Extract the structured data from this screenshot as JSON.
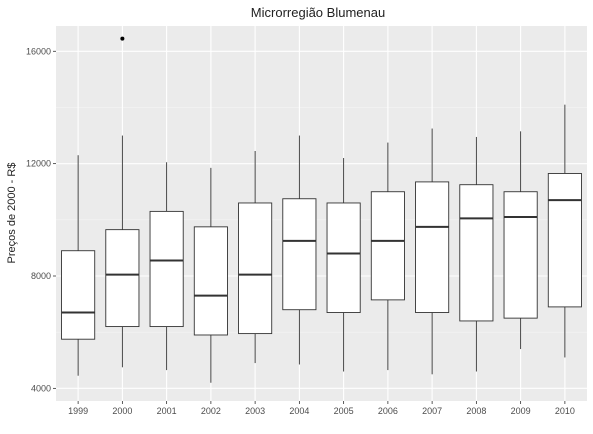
{
  "chart_data": {
    "type": "boxplot",
    "title": "Microrregião  Blumenau",
    "xlabel": "",
    "ylabel": "Preços de 2000 - R$",
    "ylim": [
      3550,
      16900
    ],
    "y_ticks": [
      4000,
      8000,
      12000,
      16000
    ],
    "y_tick_labels": [
      "4000",
      "8000",
      "12000",
      "16000"
    ],
    "grid": true,
    "categories": [
      "1999",
      "2000",
      "2001",
      "2002",
      "2003",
      "2004",
      "2005",
      "2006",
      "2007",
      "2008",
      "2009",
      "2010"
    ],
    "boxes": [
      {
        "min": 4450,
        "q1": 5750,
        "median": 6700,
        "q3": 8900,
        "max": 12300
      },
      {
        "min": 4750,
        "q1": 6200,
        "median": 8050,
        "q3": 9650,
        "max": 13000
      },
      {
        "min": 4650,
        "q1": 6200,
        "median": 8550,
        "q3": 10300,
        "max": 12050
      },
      {
        "min": 4200,
        "q1": 5900,
        "median": 7300,
        "q3": 9750,
        "max": 11850
      },
      {
        "min": 4900,
        "q1": 5950,
        "median": 8050,
        "q3": 10600,
        "max": 12450
      },
      {
        "min": 4850,
        "q1": 6800,
        "median": 9250,
        "q3": 10750,
        "max": 13000
      },
      {
        "min": 4600,
        "q1": 6700,
        "median": 8800,
        "q3": 10600,
        "max": 12200
      },
      {
        "min": 4650,
        "q1": 7150,
        "median": 9250,
        "q3": 11000,
        "max": 12750
      },
      {
        "min": 4500,
        "q1": 6700,
        "median": 9750,
        "q3": 11350,
        "max": 13250
      },
      {
        "min": 4600,
        "q1": 6400,
        "median": 10050,
        "q3": 11250,
        "max": 12950
      },
      {
        "min": 5400,
        "q1": 6500,
        "median": 10100,
        "q3": 11000,
        "max": 13150
      },
      {
        "min": 5100,
        "q1": 6900,
        "median": 10700,
        "q3": 11650,
        "max": 14100
      }
    ],
    "outliers": [
      {
        "category": "2000",
        "value": 16450
      }
    ],
    "colors": {
      "panel_background": "#ebebeb",
      "grid_major": "#ffffff",
      "box_fill": "#ffffff",
      "box_stroke": "#333333",
      "outlier": "#000000"
    }
  }
}
